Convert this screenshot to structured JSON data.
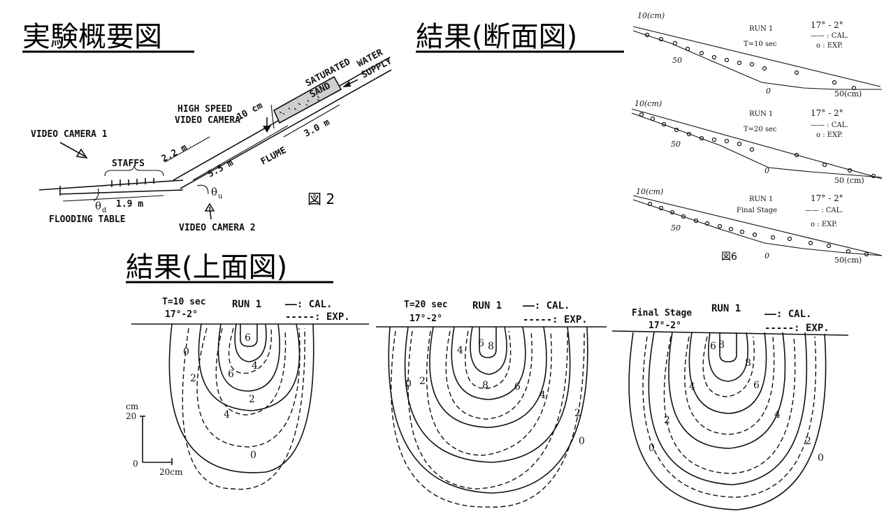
{
  "headings": {
    "experiment": "実験概要図",
    "section": "結果(断面図)",
    "plan": "結果(上面図)"
  },
  "setup": {
    "saturated_sand": "SATURATED",
    "sand": "SAND",
    "water": "WATER",
    "supply": "SUPPLY",
    "high_speed": "HIGH SPEED",
    "video_camera": "VIDEO CAMERA",
    "video_camera_1": "VIDEO CAMERA 1",
    "video_camera_2": "VIDEO CAMERA 2",
    "staffs": "STAFFS",
    "flume": "FLUME",
    "flooding_table": "FLOODING TABLE",
    "dim_10cm": "10 cm",
    "dim_3m": "3.0 m",
    "dim_2_2m": "2.2 m",
    "dim_5_5m": "5.5 m",
    "dim_1_9m": "1.9 m",
    "theta_d": "θ",
    "theta_d_sub": "d",
    "theta_u": "θ",
    "theta_u_sub": "u",
    "fig_label": "図 2"
  },
  "profiles": [
    {
      "run": "RUN 1",
      "time": "T=10 sec",
      "angle": "17° - 2°",
      "cal": "—— : CAL.",
      "exp": "o : EXP.",
      "scale": "10(cm)",
      "fifty": "50",
      "zero": "0",
      "fifty_cm": "50(cm)"
    },
    {
      "run": "RUN 1",
      "time": "T=20 sec",
      "angle": "17° - 2°",
      "cal": "—— : CAL.",
      "exp": "o : EXP.",
      "scale": "10(cm)",
      "fifty": "50",
      "zero": "0",
      "fifty_cm": "50 (cm)"
    },
    {
      "run": "RUN 1",
      "time": "Final Stage",
      "angle": "17° - 2°",
      "cal": "—— : CAL.",
      "exp": "o : EXP.",
      "scale": "10(cm)",
      "fifty": "50",
      "zero": "0",
      "fifty_cm": "50(cm)"
    }
  ],
  "profile_fig_label": "図6",
  "plans": [
    {
      "time": "T=10 sec",
      "angle": "17°-2°",
      "run": "RUN 1",
      "cal": "——: CAL.",
      "exp": "-----: EXP.",
      "c": [
        "6",
        "4",
        "6",
        "2",
        "2",
        "4",
        "0",
        "0"
      ]
    },
    {
      "time": "T=20 sec",
      "angle": "17°-2°",
      "run": "RUN 1",
      "cal": "——: CAL.",
      "exp": "-----: EXP.",
      "c": [
        "6",
        "8",
        "4",
        "8",
        "6",
        "4",
        "2",
        "0",
        "2",
        "0"
      ]
    },
    {
      "time": "Final Stage",
      "angle": "17°-2°",
      "run": "RUN 1",
      "cal": "——: CAL.",
      "exp": "-----: EXP.",
      "c": [
        "6",
        "8",
        "8",
        "6",
        "4",
        "4",
        "2",
        "2",
        "0",
        "0"
      ]
    }
  ],
  "scale_bar": {
    "unit": "cm",
    "twenty_v": "20",
    "origin": "0",
    "twenty_h": "20cm"
  }
}
